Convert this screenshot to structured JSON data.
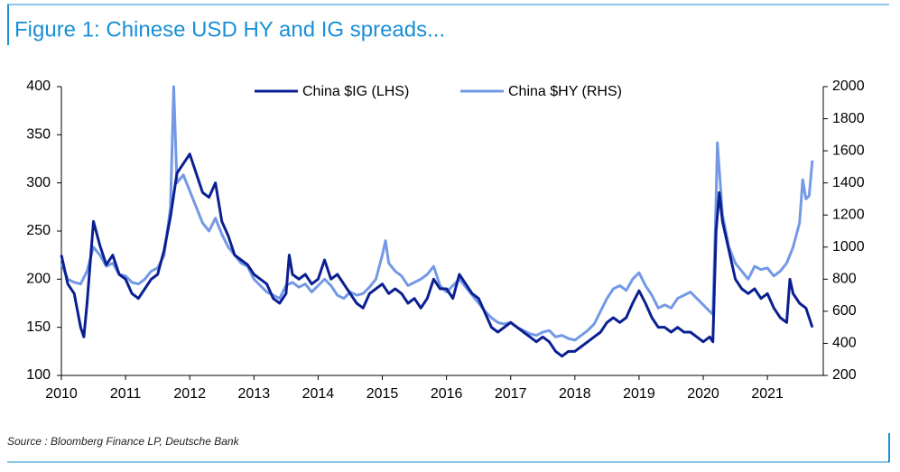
{
  "chart_data": {
    "type": "line",
    "title": "Figure 1: Chinese USD HY and IG spreads...",
    "source": "Source : Bloomberg Finance LP, Deutsche Bank",
    "xlim": [
      2010,
      2021.87
    ],
    "xticks": [
      2010,
      2011,
      2012,
      2013,
      2014,
      2015,
      2016,
      2017,
      2018,
      2019,
      2020,
      2021
    ],
    "ylim": [
      100,
      400
    ],
    "yticks": [
      100,
      150,
      200,
      250,
      300,
      350,
      400
    ],
    "y2lim": [
      200,
      2000
    ],
    "y2ticks": [
      200,
      400,
      600,
      800,
      1000,
      1200,
      1400,
      1600,
      1800,
      2000
    ],
    "legend": "top",
    "series": [
      {
        "name": "China $IG (LHS)",
        "color": "#0b1f91",
        "axis": "y",
        "x": [
          2010.0,
          2010.1,
          2010.2,
          2010.3,
          2010.35,
          2010.4,
          2010.5,
          2010.6,
          2010.7,
          2010.8,
          2010.9,
          2011.0,
          2011.1,
          2011.2,
          2011.3,
          2011.4,
          2011.5,
          2011.6,
          2011.7,
          2011.8,
          2011.9,
          2012.0,
          2012.1,
          2012.2,
          2012.3,
          2012.4,
          2012.5,
          2012.6,
          2012.7,
          2012.8,
          2012.9,
          2013.0,
          2013.1,
          2013.2,
          2013.3,
          2013.4,
          2013.5,
          2013.55,
          2013.6,
          2013.7,
          2013.8,
          2013.9,
          2014.0,
          2014.1,
          2014.2,
          2014.3,
          2014.4,
          2014.5,
          2014.6,
          2014.7,
          2014.8,
          2014.9,
          2015.0,
          2015.1,
          2015.2,
          2015.3,
          2015.4,
          2015.5,
          2015.6,
          2015.7,
          2015.8,
          2015.9,
          2016.0,
          2016.1,
          2016.2,
          2016.3,
          2016.4,
          2016.5,
          2016.6,
          2016.7,
          2016.8,
          2016.9,
          2017.0,
          2017.1,
          2017.2,
          2017.3,
          2017.4,
          2017.5,
          2017.6,
          2017.7,
          2017.8,
          2017.9,
          2018.0,
          2018.1,
          2018.2,
          2018.3,
          2018.4,
          2018.5,
          2018.6,
          2018.7,
          2018.8,
          2018.9,
          2019.0,
          2019.1,
          2019.2,
          2019.3,
          2019.4,
          2019.5,
          2019.6,
          2019.7,
          2019.8,
          2019.9,
          2020.0,
          2020.1,
          2020.15,
          2020.2,
          2020.25,
          2020.3,
          2020.4,
          2020.5,
          2020.6,
          2020.7,
          2020.8,
          2020.9,
          2021.0,
          2021.1,
          2021.2,
          2021.3,
          2021.35,
          2021.4,
          2021.5,
          2021.6,
          2021.65,
          2021.7
        ],
        "values": [
          225,
          195,
          185,
          150,
          140,
          175,
          260,
          235,
          215,
          225,
          205,
          200,
          185,
          180,
          190,
          200,
          205,
          230,
          265,
          310,
          320,
          330,
          310,
          290,
          285,
          300,
          260,
          245,
          225,
          220,
          215,
          205,
          200,
          195,
          180,
          175,
          185,
          225,
          205,
          200,
          205,
          195,
          200,
          220,
          200,
          205,
          195,
          185,
          175,
          170,
          185,
          190,
          195,
          185,
          190,
          185,
          175,
          180,
          170,
          180,
          200,
          190,
          190,
          180,
          205,
          195,
          185,
          180,
          165,
          150,
          145,
          150,
          155,
          150,
          145,
          140,
          135,
          140,
          135,
          125,
          120,
          125,
          125,
          130,
          135,
          140,
          145,
          155,
          160,
          155,
          160,
          175,
          188,
          175,
          160,
          150,
          150,
          145,
          150,
          145,
          145,
          140,
          135,
          140,
          135,
          250,
          290,
          260,
          230,
          200,
          190,
          185,
          190,
          180,
          185,
          170,
          160,
          155,
          200,
          185,
          175,
          170,
          160,
          150
        ]
      },
      {
        "name": "China $HY (RHS)",
        "color": "#7399e6",
        "axis": "y2",
        "x": [
          2010.0,
          2010.1,
          2010.2,
          2010.3,
          2010.4,
          2010.5,
          2010.6,
          2010.7,
          2010.8,
          2010.9,
          2011.0,
          2011.1,
          2011.2,
          2011.3,
          2011.4,
          2011.5,
          2011.6,
          2011.7,
          2011.75,
          2011.8,
          2011.9,
          2012.0,
          2012.1,
          2012.2,
          2012.3,
          2012.4,
          2012.5,
          2012.6,
          2012.7,
          2012.8,
          2012.9,
          2013.0,
          2013.1,
          2013.2,
          2013.3,
          2013.4,
          2013.5,
          2013.6,
          2013.7,
          2013.8,
          2013.9,
          2014.0,
          2014.1,
          2014.2,
          2014.3,
          2014.4,
          2014.5,
          2014.6,
          2014.7,
          2014.8,
          2014.9,
          2015.0,
          2015.05,
          2015.1,
          2015.2,
          2015.3,
          2015.4,
          2015.5,
          2015.6,
          2015.7,
          2015.8,
          2015.9,
          2016.0,
          2016.1,
          2016.2,
          2016.3,
          2016.4,
          2016.5,
          2016.6,
          2016.7,
          2016.8,
          2016.9,
          2017.0,
          2017.1,
          2017.2,
          2017.3,
          2017.4,
          2017.5,
          2017.6,
          2017.7,
          2017.8,
          2017.9,
          2018.0,
          2018.1,
          2018.2,
          2018.3,
          2018.4,
          2018.5,
          2018.6,
          2018.7,
          2018.8,
          2018.9,
          2019.0,
          2019.1,
          2019.2,
          2019.3,
          2019.4,
          2019.5,
          2019.6,
          2019.7,
          2019.8,
          2019.9,
          2020.0,
          2020.1,
          2020.15,
          2020.2,
          2020.22,
          2020.3,
          2020.4,
          2020.5,
          2020.6,
          2020.7,
          2020.8,
          2020.9,
          2021.0,
          2021.1,
          2021.2,
          2021.3,
          2021.4,
          2021.5,
          2021.55,
          2021.6,
          2021.65,
          2021.7
        ],
        "values": [
          900,
          800,
          780,
          770,
          850,
          1000,
          950,
          880,
          900,
          830,
          820,
          780,
          770,
          800,
          850,
          870,
          950,
          1250,
          2000,
          1400,
          1450,
          1350,
          1250,
          1150,
          1100,
          1180,
          1080,
          1000,
          950,
          900,
          880,
          800,
          760,
          720,
          700,
          680,
          760,
          780,
          750,
          770,
          720,
          760,
          800,
          760,
          700,
          680,
          720,
          700,
          710,
          750,
          800,
          950,
          1040,
          900,
          850,
          820,
          760,
          780,
          800,
          830,
          880,
          760,
          720,
          760,
          800,
          750,
          700,
          650,
          600,
          560,
          530,
          520,
          530,
          500,
          480,
          460,
          450,
          470,
          480,
          440,
          450,
          430,
          420,
          450,
          480,
          520,
          600,
          680,
          740,
          760,
          730,
          800,
          840,
          760,
          700,
          620,
          640,
          620,
          680,
          700,
          720,
          680,
          640,
          600,
          580,
          1300,
          1650,
          1200,
          1000,
          900,
          850,
          800,
          880,
          860,
          870,
          820,
          850,
          900,
          1000,
          1150,
          1420,
          1300,
          1320,
          1540
        ]
      }
    ]
  }
}
